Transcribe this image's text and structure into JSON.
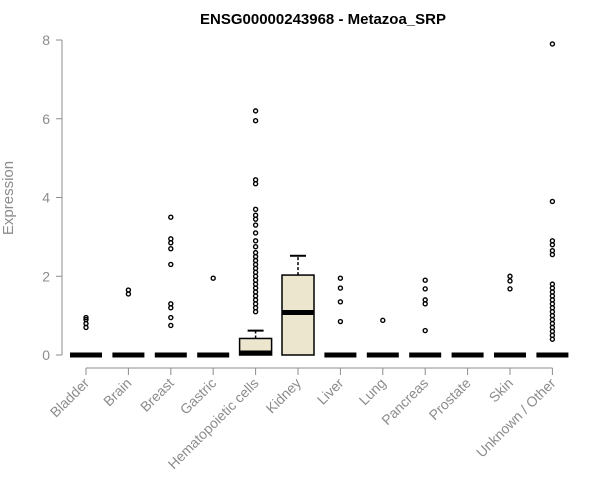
{
  "chart_data": {
    "type": "box",
    "title": "ENSG00000243968 - Metazoa_SRP",
    "ylabel": "Expression",
    "xlabel": "",
    "ylim": [
      0,
      8
    ],
    "yticks": [
      0,
      2,
      4,
      6,
      8
    ],
    "grid": false,
    "colors": {
      "box_fill": "#ede6cf",
      "stroke": "#000000",
      "axis": "#8c8c8c",
      "text": "#8c8c8c"
    },
    "categories": [
      "Bladder",
      "Brain",
      "Breast",
      "Gastric",
      "Hematopoietic cells",
      "Kidney",
      "Liver",
      "Lung",
      "Pancreas",
      "Prostate",
      "Skin",
      "Unknown / Other"
    ],
    "boxes": [
      {
        "category": "Bladder",
        "q1": 0,
        "median": 0,
        "q3": 0,
        "whisker_low": 0,
        "whisker_high": 0,
        "outliers": [
          0.7,
          0.8,
          0.9,
          0.95
        ]
      },
      {
        "category": "Brain",
        "q1": 0,
        "median": 0,
        "q3": 0,
        "whisker_low": 0,
        "whisker_high": 0,
        "outliers": [
          1.55,
          1.65
        ]
      },
      {
        "category": "Breast",
        "q1": 0,
        "median": 0,
        "q3": 0,
        "whisker_low": 0,
        "whisker_high": 0,
        "outliers": [
          0.75,
          0.95,
          1.2,
          1.3,
          2.3,
          2.7,
          2.85,
          2.95,
          3.5
        ]
      },
      {
        "category": "Gastric",
        "q1": 0,
        "median": 0,
        "q3": 0,
        "whisker_low": 0,
        "whisker_high": 0,
        "outliers": [
          1.95
        ]
      },
      {
        "category": "Hematopoietic cells",
        "q1": 0,
        "median": 0.05,
        "q3": 0.42,
        "whisker_low": 0,
        "whisker_high": 0.62,
        "outliers": [
          1.1,
          1.2,
          1.3,
          1.4,
          1.5,
          1.6,
          1.7,
          1.8,
          1.9,
          2.0,
          2.1,
          2.2,
          2.3,
          2.4,
          2.5,
          2.6,
          2.75,
          2.9,
          3.1,
          3.3,
          3.45,
          3.55,
          3.7,
          4.35,
          4.45,
          5.95,
          6.2
        ]
      },
      {
        "category": "Kidney",
        "q1": 0,
        "median": 1.08,
        "q3": 2.03,
        "whisker_low": 0,
        "whisker_high": 2.52,
        "outliers": []
      },
      {
        "category": "Liver",
        "q1": 0,
        "median": 0,
        "q3": 0,
        "whisker_low": 0,
        "whisker_high": 0,
        "outliers": [
          0.85,
          1.35,
          1.7,
          1.95
        ]
      },
      {
        "category": "Lung",
        "q1": 0,
        "median": 0,
        "q3": 0,
        "whisker_low": 0,
        "whisker_high": 0,
        "outliers": [
          0.88
        ]
      },
      {
        "category": "Pancreas",
        "q1": 0,
        "median": 0,
        "q3": 0,
        "whisker_low": 0,
        "whisker_high": 0,
        "outliers": [
          0.62,
          1.3,
          1.4,
          1.68,
          1.9
        ]
      },
      {
        "category": "Prostate",
        "q1": 0,
        "median": 0,
        "q3": 0,
        "whisker_low": 0,
        "whisker_high": 0,
        "outliers": []
      },
      {
        "category": "Skin",
        "q1": 0,
        "median": 0,
        "q3": 0,
        "whisker_low": 0,
        "whisker_high": 0,
        "outliers": [
          1.68,
          1.88,
          2.0
        ]
      },
      {
        "category": "Unknown / Other",
        "q1": 0,
        "median": 0,
        "q3": 0,
        "whisker_low": 0,
        "whisker_high": 0,
        "outliers": [
          0.4,
          0.5,
          0.6,
          0.7,
          0.8,
          0.9,
          1.0,
          1.1,
          1.2,
          1.3,
          1.4,
          1.5,
          1.6,
          1.7,
          1.8,
          2.55,
          2.65,
          2.8,
          2.9,
          3.9,
          7.9
        ]
      }
    ]
  }
}
